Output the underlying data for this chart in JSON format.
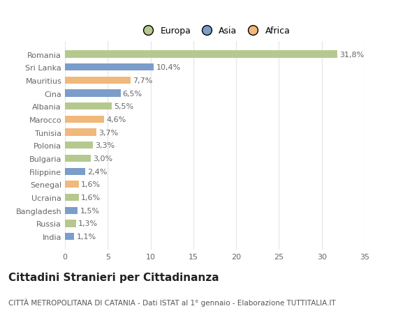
{
  "categories": [
    "India",
    "Russia",
    "Bangladesh",
    "Ucraina",
    "Senegal",
    "Filippine",
    "Bulgaria",
    "Polonia",
    "Tunisia",
    "Marocco",
    "Albania",
    "Cina",
    "Mauritius",
    "Sri Lanka",
    "Romania"
  ],
  "values": [
    1.1,
    1.3,
    1.5,
    1.6,
    1.6,
    2.4,
    3.0,
    3.3,
    3.7,
    4.6,
    5.5,
    6.5,
    7.7,
    10.4,
    31.8
  ],
  "labels": [
    "1,1%",
    "1,3%",
    "1,5%",
    "1,6%",
    "1,6%",
    "2,4%",
    "3,0%",
    "3,3%",
    "3,7%",
    "4,6%",
    "5,5%",
    "6,5%",
    "7,7%",
    "10,4%",
    "31,8%"
  ],
  "continent": [
    "Asia",
    "Europa",
    "Asia",
    "Europa",
    "Africa",
    "Asia",
    "Europa",
    "Europa",
    "Africa",
    "Africa",
    "Europa",
    "Asia",
    "Africa",
    "Asia",
    "Europa"
  ],
  "colors": {
    "Europa": "#b5c98e",
    "Asia": "#7b9dc9",
    "Africa": "#f0b87a"
  },
  "legend": [
    "Europa",
    "Asia",
    "Africa"
  ],
  "legend_colors": [
    "#b5c98e",
    "#7b9dc9",
    "#f0b87a"
  ],
  "title": "Cittadini Stranieri per Cittadinanza",
  "subtitle": "CITTÀ METROPOLITANA DI CATANIA - Dati ISTAT al 1° gennaio - Elaborazione TUTTITALIA.IT",
  "xlim": [
    0,
    35
  ],
  "xticks": [
    0,
    5,
    10,
    15,
    20,
    25,
    30,
    35
  ],
  "background_color": "#ffffff",
  "plot_bg_color": "#ffffff",
  "grid_color": "#e8e8e8",
  "bar_height": 0.55,
  "label_fontsize": 8,
  "tick_fontsize": 8,
  "title_fontsize": 11,
  "subtitle_fontsize": 7.5,
  "label_color": "#666666",
  "tick_color": "#666666"
}
